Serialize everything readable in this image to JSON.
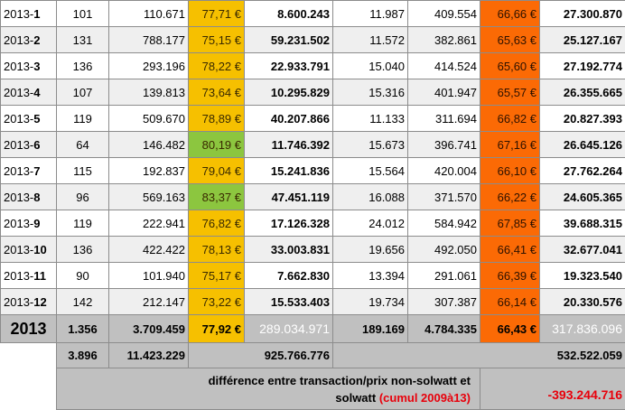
{
  "months": [
    {
      "year": "2013-",
      "num": "1",
      "a": "101",
      "b": "110.671",
      "eur1": "77,71 €",
      "eur1_green": false,
      "tot1": "8.600.243",
      "c": "11.987",
      "d": "409.554",
      "eur2": "66,66 €",
      "tot2": "27.300.870"
    },
    {
      "year": "2013-",
      "num": "2",
      "a": "131",
      "b": "788.177",
      "eur1": "75,15 €",
      "eur1_green": false,
      "tot1": "59.231.502",
      "c": "11.572",
      "d": "382.861",
      "eur2": "65,63 €",
      "tot2": "25.127.167"
    },
    {
      "year": "2013-",
      "num": "3",
      "a": "136",
      "b": "293.196",
      "eur1": "78,22 €",
      "eur1_green": false,
      "tot1": "22.933.791",
      "c": "15.040",
      "d": "414.524",
      "eur2": "65,60 €",
      "tot2": "27.192.774"
    },
    {
      "year": "2013-",
      "num": "4",
      "a": "107",
      "b": "139.813",
      "eur1": "73,64 €",
      "eur1_green": false,
      "tot1": "10.295.829",
      "c": "15.316",
      "d": "401.947",
      "eur2": "65,57 €",
      "tot2": "26.355.665"
    },
    {
      "year": "2013-",
      "num": "5",
      "a": "119",
      "b": "509.670",
      "eur1": "78,89 €",
      "eur1_green": false,
      "tot1": "40.207.866",
      "c": "11.133",
      "d": "311.694",
      "eur2": "66,82 €",
      "tot2": "20.827.393"
    },
    {
      "year": "2013-",
      "num": "6",
      "a": "64",
      "b": "146.482",
      "eur1": "80,19 €",
      "eur1_green": true,
      "tot1": "11.746.392",
      "c": "15.673",
      "d": "396.741",
      "eur2": "67,16 €",
      "tot2": "26.645.126"
    },
    {
      "year": "2013-",
      "num": "7",
      "a": "115",
      "b": "192.837",
      "eur1": "79,04 €",
      "eur1_green": false,
      "tot1": "15.241.836",
      "c": "15.564",
      "d": "420.004",
      "eur2": "66,10 €",
      "tot2": "27.762.264"
    },
    {
      "year": "2013-",
      "num": "8",
      "a": "96",
      "b": "569.163",
      "eur1": "83,37 €",
      "eur1_green": true,
      "tot1": "47.451.119",
      "c": "16.088",
      "d": "371.570",
      "eur2": "66,22 €",
      "tot2": "24.605.365"
    },
    {
      "year": "2013-",
      "num": "9",
      "a": "119",
      "b": "222.941",
      "eur1": "76,82 €",
      "eur1_green": false,
      "tot1": "17.126.328",
      "c": "24.012",
      "d": "584.942",
      "eur2": "67,85 €",
      "tot2": "39.688.315"
    },
    {
      "year": "2013-",
      "num": "10",
      "a": "136",
      "b": "422.422",
      "eur1": "78,13 €",
      "eur1_green": false,
      "tot1": "33.003.831",
      "c": "19.656",
      "d": "492.050",
      "eur2": "66,41 €",
      "tot2": "32.677.041"
    },
    {
      "year": "2013-",
      "num": "11",
      "a": "90",
      "b": "101.940",
      "eur1": "75,17 €",
      "eur1_green": false,
      "tot1": "7.662.830",
      "c": "13.394",
      "d": "291.061",
      "eur2": "66,39 €",
      "tot2": "19.323.540"
    },
    {
      "year": "2013-",
      "num": "12",
      "a": "142",
      "b": "212.147",
      "eur1": "73,22 €",
      "eur1_green": false,
      "tot1": "15.533.403",
      "c": "19.734",
      "d": "307.387",
      "eur2": "66,14 €",
      "tot2": "20.330.576"
    }
  ],
  "year_total": {
    "label": "2013",
    "a": "1.356",
    "b": "3.709.459",
    "eur1": "77,92 €",
    "tot1": "289.034.971",
    "c": "189.169",
    "d": "4.784.335",
    "eur2": "66,43 €",
    "tot2": "317.836.096"
  },
  "cumul": {
    "a": "3.896",
    "b": "11.423.229",
    "tot1": "925.766.776",
    "tot2": "532.522.059"
  },
  "difference": {
    "line1": "différence entre transaction/prix non-solwatt et",
    "line2": "solwatt",
    "suffix": "(cumul 2009à13)",
    "value": "-393.244.716"
  },
  "colors": {
    "yellow": "#f6c000",
    "green": "#8cc63f",
    "orange": "#fb6a05",
    "grey": "#c0c0c0",
    "red": "#e8000b"
  }
}
